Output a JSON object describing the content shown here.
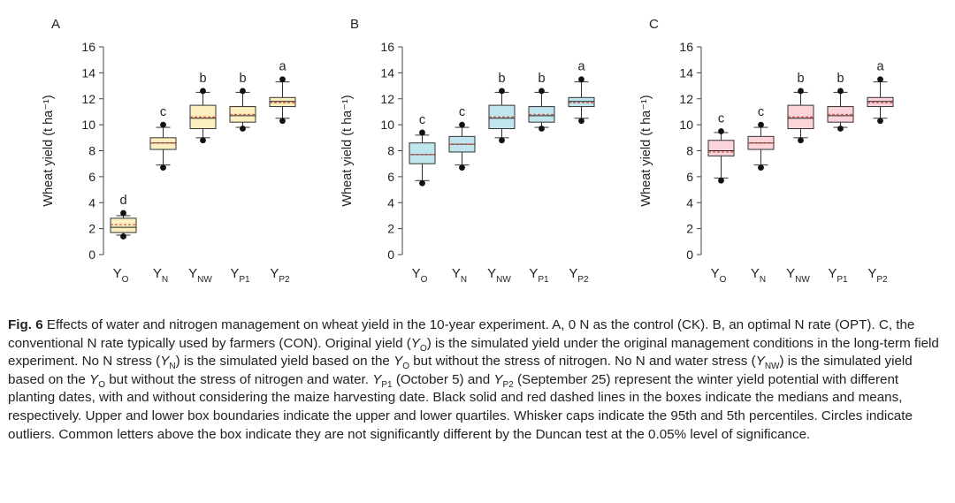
{
  "chart_data": [
    {
      "type": "box",
      "panel_label": "A",
      "ylabel": "Wheat yield (t ha⁻¹)",
      "ylim": [
        0,
        16
      ],
      "yticks": [
        0,
        2,
        4,
        6,
        8,
        10,
        12,
        14,
        16
      ],
      "fill_color": "#fcefbf",
      "categories": [
        {
          "label": "Y",
          "sub": "O"
        },
        {
          "label": "Y",
          "sub": "N"
        },
        {
          "label": "Y",
          "sub": "NW"
        },
        {
          "label": "Y",
          "sub": "P1"
        },
        {
          "label": "Y",
          "sub": "P2"
        }
      ],
      "boxes": [
        {
          "q1": 1.7,
          "median": 2.1,
          "mean": 2.3,
          "q3": 2.8,
          "whisker_low": 1.5,
          "whisker_high": 3.0,
          "outliers": [
            1.4,
            3.2
          ],
          "letter": "d"
        },
        {
          "q1": 8.1,
          "median": 8.6,
          "mean": 8.6,
          "q3": 9.0,
          "whisker_low": 6.9,
          "whisker_high": 9.8,
          "outliers": [
            6.7,
            10.0
          ],
          "letter": "c"
        },
        {
          "q1": 9.7,
          "median": 10.5,
          "mean": 10.6,
          "q3": 11.5,
          "whisker_low": 9.0,
          "whisker_high": 12.5,
          "outliers": [
            8.8,
            12.6
          ],
          "letter": "b"
        },
        {
          "q1": 10.2,
          "median": 10.7,
          "mean": 10.8,
          "q3": 11.4,
          "whisker_low": 9.8,
          "whisker_high": 12.5,
          "outliers": [
            9.7,
            12.6
          ],
          "letter": "b"
        },
        {
          "q1": 11.4,
          "median": 11.8,
          "mean": 11.7,
          "q3": 12.1,
          "whisker_low": 10.5,
          "whisker_high": 13.3,
          "outliers": [
            10.3,
            13.5
          ],
          "letter": "a"
        }
      ]
    },
    {
      "type": "box",
      "panel_label": "B",
      "ylabel": "Wheat yield (t ha⁻¹)",
      "ylim": [
        0,
        16
      ],
      "yticks": [
        0,
        2,
        4,
        6,
        8,
        10,
        12,
        14,
        16
      ],
      "fill_color": "#bfe6ec",
      "categories": [
        {
          "label": "Y",
          "sub": "O"
        },
        {
          "label": "Y",
          "sub": "N"
        },
        {
          "label": "Y",
          "sub": "NW"
        },
        {
          "label": "Y",
          "sub": "P1"
        },
        {
          "label": "Y",
          "sub": "P2"
        }
      ],
      "boxes": [
        {
          "q1": 7.0,
          "median": 7.7,
          "mean": 7.7,
          "q3": 8.6,
          "whisker_low": 5.7,
          "whisker_high": 9.2,
          "outliers": [
            5.5,
            9.4
          ],
          "letter": "c"
        },
        {
          "q1": 7.9,
          "median": 8.5,
          "mean": 8.5,
          "q3": 9.1,
          "whisker_low": 6.9,
          "whisker_high": 9.8,
          "outliers": [
            6.7,
            10.0
          ],
          "letter": "c"
        },
        {
          "q1": 9.7,
          "median": 10.5,
          "mean": 10.6,
          "q3": 11.5,
          "whisker_low": 9.0,
          "whisker_high": 12.5,
          "outliers": [
            8.8,
            12.6
          ],
          "letter": "b"
        },
        {
          "q1": 10.2,
          "median": 10.7,
          "mean": 10.8,
          "q3": 11.4,
          "whisker_low": 9.8,
          "whisker_high": 12.5,
          "outliers": [
            9.7,
            12.6
          ],
          "letter": "b"
        },
        {
          "q1": 11.4,
          "median": 11.8,
          "mean": 11.7,
          "q3": 12.1,
          "whisker_low": 10.5,
          "whisker_high": 13.3,
          "outliers": [
            10.3,
            13.5
          ],
          "letter": "a"
        }
      ]
    },
    {
      "type": "box",
      "panel_label": "C",
      "ylabel": "Wheat yield (t ha⁻¹)",
      "ylim": [
        0,
        16
      ],
      "yticks": [
        0,
        2,
        4,
        6,
        8,
        10,
        12,
        14,
        16
      ],
      "fill_color": "#fbd3d8",
      "categories": [
        {
          "label": "Y",
          "sub": "O"
        },
        {
          "label": "Y",
          "sub": "N"
        },
        {
          "label": "Y",
          "sub": "NW"
        },
        {
          "label": "Y",
          "sub": "P1"
        },
        {
          "label": "Y",
          "sub": "P2"
        }
      ],
      "boxes": [
        {
          "q1": 7.6,
          "median": 8.0,
          "mean": 7.9,
          "q3": 8.8,
          "whisker_low": 5.9,
          "whisker_high": 9.4,
          "outliers": [
            5.7,
            9.5
          ],
          "letter": "c"
        },
        {
          "q1": 8.1,
          "median": 8.6,
          "mean": 8.6,
          "q3": 9.1,
          "whisker_low": 6.9,
          "whisker_high": 9.8,
          "outliers": [
            6.7,
            10.0
          ],
          "letter": "c"
        },
        {
          "q1": 9.7,
          "median": 10.5,
          "mean": 10.6,
          "q3": 11.5,
          "whisker_low": 9.0,
          "whisker_high": 12.5,
          "outliers": [
            8.8,
            12.6
          ],
          "letter": "b"
        },
        {
          "q1": 10.2,
          "median": 10.7,
          "mean": 10.8,
          "q3": 11.4,
          "whisker_low": 9.8,
          "whisker_high": 12.5,
          "outliers": [
            9.7,
            12.6
          ],
          "letter": "b"
        },
        {
          "q1": 11.4,
          "median": 11.8,
          "mean": 11.7,
          "q3": 12.1,
          "whisker_low": 10.5,
          "whisker_high": 13.3,
          "outliers": [
            10.3,
            13.5
          ],
          "letter": "a"
        }
      ]
    }
  ],
  "style": {
    "box_stroke": "#333333",
    "median_color": "#222222",
    "mean_color": "#d6453d",
    "outlier_color": "#111111",
    "axis_color": "#444444"
  },
  "caption": {
    "label": "Fig. 6",
    "parts": [
      {
        "t": "Effects of water and nitrogen management on wheat yield in the 10-year experiment.  A, 0 N as the control (CK).  B, an optimal N rate (OPT).  C, the conventional N rate typically used by farmers (CON).  Original yield ("
      },
      {
        "i": "Y",
        "s": "O"
      },
      {
        "t": ") is the simulated yield under the original management conditions in the long-term field experiment.  No N stress ("
      },
      {
        "i": "Y",
        "s": "N"
      },
      {
        "t": ") is the simulated yield based on the "
      },
      {
        "i": "Y",
        "s": "O"
      },
      {
        "t": " but without the stress of nitrogen.  No N and water stress ("
      },
      {
        "i": "Y",
        "s": "NW"
      },
      {
        "t": ") is the simulated yield based on the "
      },
      {
        "i": "Y",
        "s": "O"
      },
      {
        "t": " but without the stress of nitrogen and water.  "
      },
      {
        "i": "Y",
        "s": "P1"
      },
      {
        "t": " (October 5) and "
      },
      {
        "i": "Y",
        "s": "P2"
      },
      {
        "t": " (September 25) represent the winter yield potential with different planting dates, with and without considering the maize harvesting date.  Black solid and red dashed lines in the boxes indicate the medians and means, respectively.  Upper and lower box boundaries indicate the upper and lower quartiles.  Whisker caps indicate the 95th and 5th percentiles.  Circles indicate outliers.  Common letters above the box indicate they are not significantly different by the Duncan test at the 0.05% level of significance."
      }
    ]
  }
}
